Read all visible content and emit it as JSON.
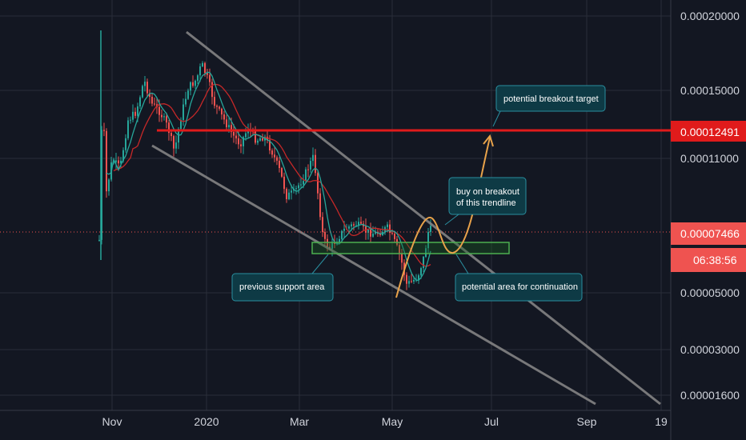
{
  "chart_data": {
    "type": "candlestick",
    "x_ticks": [
      "Nov",
      "2020",
      "Mar",
      "May",
      "Jul",
      "Sep",
      "19"
    ],
    "y_ticks": [
      "0.00020000",
      "0.00015000",
      "0.00011000",
      "0.00005000",
      "0.00003000",
      "0.00001600"
    ],
    "last_price": "0.00007466",
    "countdown": "06:38:56",
    "resistance_price": "0.00012491",
    "annotations": [
      {
        "text": "potential breakout target"
      },
      {
        "text": "buy on breakout",
        "text2": "of this trendline"
      },
      {
        "text": "previous  support area"
      },
      {
        "text": "potential area for continuation"
      }
    ],
    "colors": {
      "background": "#131722",
      "up": "#26a69a",
      "down": "#ef5350",
      "resistance": "#e01b1b",
      "support_box": "#4caf50",
      "trendline": "#8a8a8a",
      "projection": "#e8a24a",
      "callout_fill": "#0e3a45",
      "callout_border": "#2a8fa0",
      "ma_fast": "#26a69a",
      "ma_slow": "#c62828"
    }
  }
}
